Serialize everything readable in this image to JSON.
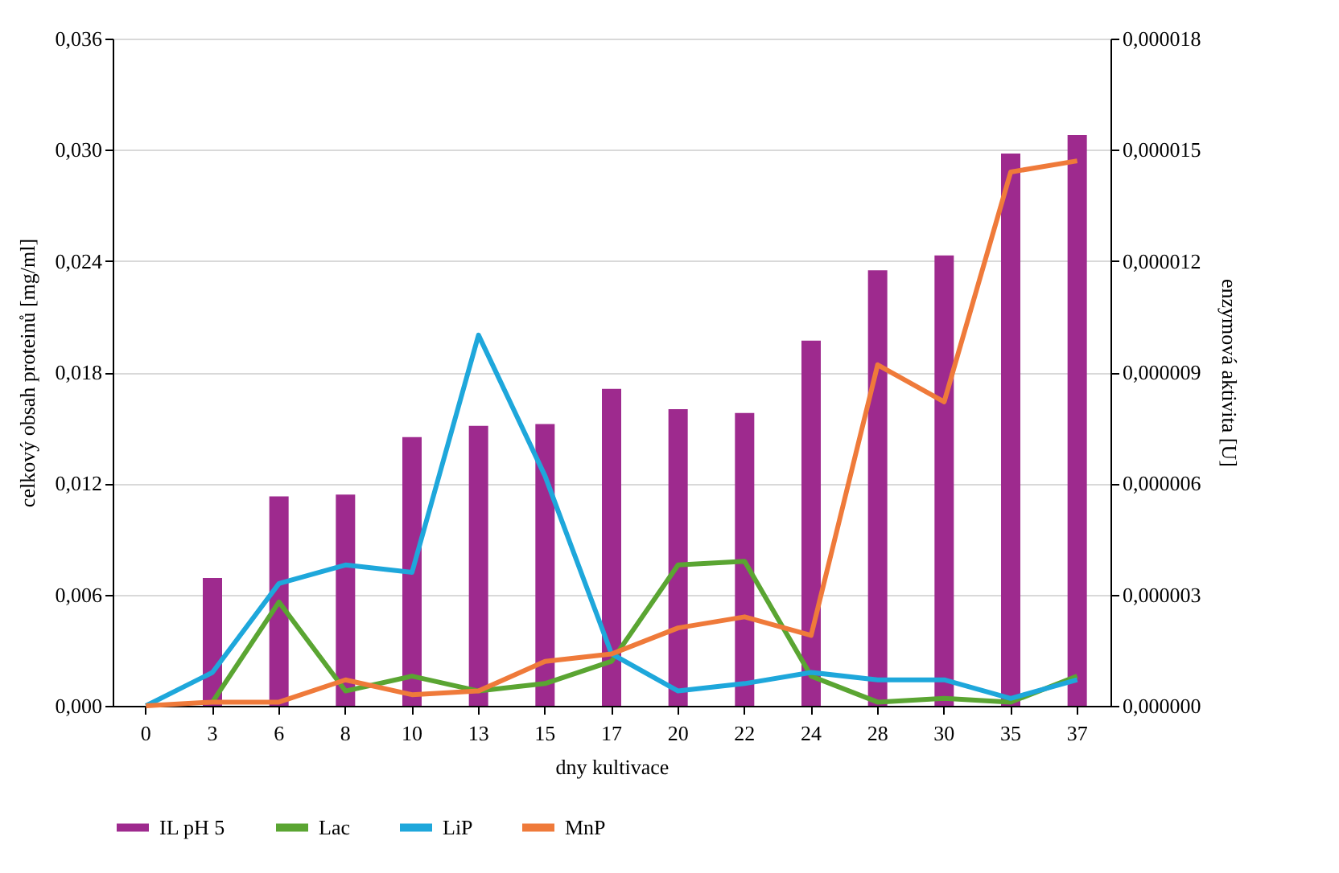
{
  "chart_data": {
    "type": "bar",
    "xlabel": "dny kultivace",
    "ylabel": "celkový obsah proteinů [mg/ml]",
    "y2label": "enzymová aktivita [U]",
    "categories": [
      "0",
      "3",
      "6",
      "8",
      "10",
      "13",
      "15",
      "17",
      "20",
      "22",
      "24",
      "28",
      "30",
      "35",
      "37"
    ],
    "series": [
      {
        "name": "IL pH 5",
        "color": "#9e2a8e",
        "values": [
          null,
          0.0069,
          0.0113,
          0.0114,
          0.0145,
          0.0151,
          0.0152,
          0.0171,
          0.016,
          0.0158,
          0.0197,
          0.0235,
          0.0243,
          0.0298,
          0.0308
        ]
      },
      {
        "name": "Lac",
        "type": "line",
        "axis": "y2",
        "color": "#5aa532",
        "values": [
          null,
          1e-07,
          2.8e-06,
          4e-07,
          8e-07,
          4e-07,
          6e-07,
          1.2e-06,
          3.8e-06,
          3.9e-06,
          8e-07,
          1e-07,
          2e-07,
          1e-07,
          8e-07
        ]
      },
      {
        "name": "LiP",
        "type": "line",
        "axis": "y2",
        "color": "#1ea7db",
        "values": [
          0,
          9e-07,
          3.3e-06,
          3.8e-06,
          3.6e-06,
          1e-05,
          6.2e-06,
          1.4e-06,
          4e-07,
          6e-07,
          9e-07,
          7e-07,
          7e-07,
          2e-07,
          7e-07
        ]
      },
      {
        "name": "MnP",
        "type": "line",
        "axis": "y2",
        "color": "#ef7a3a",
        "values": [
          0,
          1e-07,
          1e-07,
          7e-07,
          3e-07,
          4e-07,
          1.2e-06,
          1.4e-06,
          2.1e-06,
          2.4e-06,
          1.9e-06,
          9.2e-06,
          8.2e-06,
          1.44e-05,
          1.47e-05
        ]
      }
    ],
    "ylim": [
      0,
      0.036
    ],
    "yticks": [
      {
        "value": 0,
        "label": "0,000"
      },
      {
        "value": 0.006,
        "label": "0,006"
      },
      {
        "value": 0.012,
        "label": "0,012"
      },
      {
        "value": 0.018,
        "label": "0,018"
      },
      {
        "value": 0.024,
        "label": "0,024"
      },
      {
        "value": 0.03,
        "label": "0,030"
      },
      {
        "value": 0.036,
        "label": "0,036"
      }
    ],
    "y2lim": [
      0,
      1.8e-05
    ],
    "y2ticks": [
      {
        "value": 0,
        "label": "0,000000"
      },
      {
        "value": 3e-06,
        "label": "0,000003"
      },
      {
        "value": 6e-06,
        "label": "0,000006"
      },
      {
        "value": 9e-06,
        "label": "0,000009"
      },
      {
        "value": 1.2e-05,
        "label": "0,000012"
      },
      {
        "value": 1.5e-05,
        "label": "0,000015"
      },
      {
        "value": 1.8e-05,
        "label": "0,000018"
      }
    ],
    "grid": "y",
    "legend": "bottom"
  }
}
